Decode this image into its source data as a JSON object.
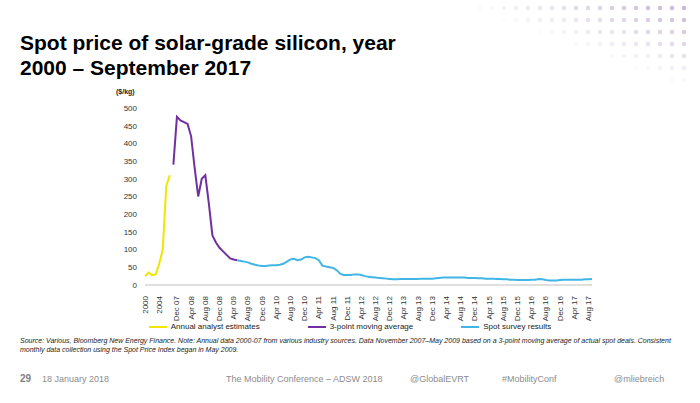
{
  "title": "Spot price of solar-grade silicon, year\n2000 – September 2017",
  "chart_data": {
    "type": "line",
    "y_label": "($/kg)",
    "categories": [
      "2000",
      null,
      null,
      null,
      "2004",
      null,
      null,
      null,
      null,
      "Dec 07",
      null,
      null,
      null,
      "Apr 08",
      null,
      null,
      null,
      "Aug 08",
      null,
      null,
      null,
      "Dec 08",
      null,
      null,
      null,
      "Apr 09",
      null,
      null,
      null,
      "Aug 09",
      null,
      null,
      null,
      "Dec 09",
      null,
      null,
      null,
      "Apr 10",
      null,
      null,
      null,
      "Aug 10",
      null,
      null,
      null,
      "Dec 10",
      null,
      null,
      null,
      "Apr 11",
      null,
      null,
      null,
      "Aug 11",
      null,
      null,
      null,
      "Dec 11",
      null,
      null,
      null,
      "Apr 12",
      null,
      null,
      null,
      "Aug 12",
      null,
      null,
      null,
      "Dec 12",
      null,
      null,
      null,
      "Apr 13",
      null,
      null,
      null,
      "Aug 13",
      null,
      null,
      null,
      "Dec 13",
      null,
      null,
      null,
      "Apr 14",
      null,
      null,
      null,
      "Aug 14",
      null,
      null,
      null,
      "Dec 14",
      null,
      null,
      null,
      "Apr 15",
      null,
      null,
      null,
      "Aug 15",
      null,
      null,
      null,
      "Dec 15",
      null,
      null,
      null,
      "Apr 16",
      null,
      null,
      null,
      "Aug 16",
      null,
      null,
      null,
      "Dec 16",
      null,
      null,
      null,
      "Apr 17",
      null,
      null,
      null,
      "Aug 17",
      null
    ],
    "series": [
      {
        "name": "Annual analyst estimates",
        "color": "#f2e500",
        "values": [
          25,
          35,
          28,
          30,
          60,
          100,
          280,
          310,
          null,
          null,
          null,
          null,
          null,
          null,
          null,
          null,
          null,
          null,
          null,
          null,
          null,
          null,
          null,
          null,
          null,
          null,
          null,
          null,
          null,
          null,
          null,
          null,
          null,
          null,
          null,
          null,
          null,
          null,
          null,
          null,
          null,
          null,
          null,
          null,
          null,
          null,
          null,
          null,
          null,
          null,
          null,
          null,
          null,
          null,
          null,
          null,
          null,
          null,
          null,
          null,
          null,
          null,
          null,
          null,
          null,
          null,
          null,
          null,
          null,
          null,
          null,
          null,
          null,
          null,
          null,
          null,
          null,
          null,
          null,
          null,
          null,
          null,
          null,
          null,
          null,
          null,
          null,
          null,
          null,
          null,
          null,
          null,
          null,
          null,
          null,
          null,
          null,
          null,
          null,
          null,
          null,
          null,
          null,
          null,
          null,
          null,
          null,
          null,
          null,
          null,
          null,
          null,
          null,
          null,
          null,
          null,
          null,
          null,
          null,
          null,
          null,
          null,
          null,
          null,
          null,
          null,
          null
        ]
      },
      {
        "name": "3-point moving average",
        "color": "#7030a0",
        "values": [
          null,
          null,
          null,
          null,
          null,
          null,
          null,
          null,
          340,
          475,
          465,
          460,
          455,
          420,
          330,
          250,
          300,
          310,
          230,
          140,
          120,
          105,
          95,
          85,
          75,
          72,
          70,
          null,
          null,
          null,
          null,
          null,
          null,
          null,
          null,
          null,
          null,
          null,
          null,
          null,
          null,
          null,
          null,
          null,
          null,
          null,
          null,
          null,
          null,
          null,
          null,
          null,
          null,
          null,
          null,
          null,
          null,
          null,
          null,
          null,
          null,
          null,
          null,
          null,
          null,
          null,
          null,
          null,
          null,
          null,
          null,
          null,
          null,
          null,
          null,
          null,
          null,
          null,
          null,
          null,
          null,
          null,
          null,
          null,
          null,
          null,
          null,
          null,
          null,
          null,
          null,
          null,
          null,
          null,
          null,
          null,
          null,
          null,
          null,
          null,
          null,
          null,
          null,
          null,
          null,
          null,
          null,
          null,
          null,
          null,
          null,
          null,
          null,
          null,
          null,
          null,
          null,
          null,
          null,
          null,
          null,
          null,
          null,
          null,
          null,
          null,
          null
        ]
      },
      {
        "name": "Spot survey results",
        "color": "#41b6e6",
        "values": [
          null,
          null,
          null,
          null,
          null,
          null,
          null,
          null,
          null,
          null,
          null,
          null,
          null,
          null,
          null,
          null,
          null,
          null,
          null,
          null,
          null,
          null,
          null,
          null,
          null,
          null,
          70,
          68,
          66,
          64,
          60,
          57,
          55,
          54,
          54,
          55,
          56,
          56,
          57,
          60,
          66,
          72,
          74,
          70,
          72,
          78,
          80,
          78,
          76,
          70,
          55,
          52,
          50,
          48,
          42,
          32,
          28,
          28,
          28,
          30,
          30,
          28,
          25,
          23,
          22,
          21,
          20,
          19,
          18,
          17,
          16,
          16,
          17,
          17,
          17,
          17,
          17,
          17,
          18,
          18,
          18,
          18,
          19,
          20,
          21,
          21,
          21,
          21,
          21,
          21,
          21,
          20,
          20,
          20,
          19,
          19,
          18,
          18,
          18,
          17,
          17,
          16,
          16,
          15,
          15,
          14,
          14,
          14,
          14,
          15,
          15,
          17,
          16,
          14,
          13,
          13,
          13,
          14,
          15,
          15,
          15,
          15,
          15,
          15,
          16,
          16,
          17
        ]
      }
    ],
    "ylim": [
      0,
      500
    ],
    "yticks": [
      0,
      50,
      100,
      150,
      200,
      250,
      300,
      350,
      400,
      450,
      500
    ],
    "grid": false,
    "legend": "bottom"
  },
  "source_note": "Source: Various, Bloomberg New Energy Finance. Note: Annual data 2000-07 from various industry sources. Data November 2007–May 2009 based on a 3-point moving average of actual spot deals. Consistent monthly data collection using the Spot Price Index began in May 2009.",
  "footer": {
    "page": "29",
    "items": [
      "18 January 2018",
      "The Mobility Conference – ADSW 2018",
      "@GlobalEVRT",
      "#MobilityConf",
      "@mliebreich"
    ]
  }
}
